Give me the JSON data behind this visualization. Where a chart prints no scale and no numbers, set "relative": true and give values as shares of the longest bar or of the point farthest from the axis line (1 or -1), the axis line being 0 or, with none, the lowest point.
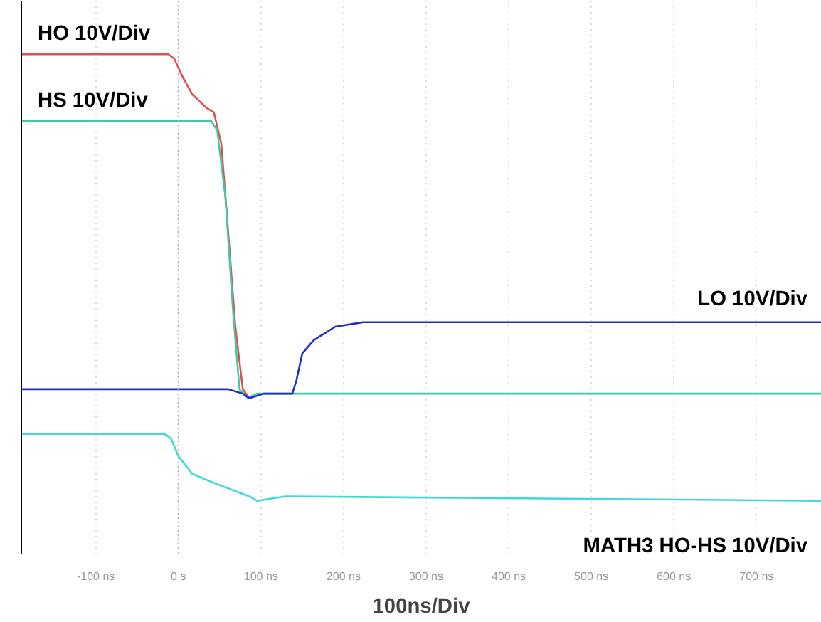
{
  "chart_data": {
    "type": "line",
    "relative": true,
    "xlabel": "100ns/Div",
    "xlim": [
      -191,
      779
    ],
    "xticks": [
      {
        "value": -100,
        "label": "-100 ns"
      },
      {
        "value": 0,
        "label": "0 s"
      },
      {
        "value": 100,
        "label": "100 ns"
      },
      {
        "value": 200,
        "label": "200 ns"
      },
      {
        "value": 300,
        "label": "300 ns"
      },
      {
        "value": 400,
        "label": "400 ns"
      },
      {
        "value": 500,
        "label": "500 ns"
      },
      {
        "value": 600,
        "label": "600 ns"
      },
      {
        "value": 700,
        "label": "700 ns"
      }
    ],
    "grid": "x",
    "ref_lines": [
      {
        "axis": "x",
        "value": 0,
        "color": "#b0b0b0",
        "line_style": "dotted"
      }
    ],
    "series": [
      {
        "name": "HO 10V/Div",
        "color": "#e05050",
        "x": [
          -191,
          -12,
          -5,
          5,
          17,
          34,
          43,
          52,
          60,
          69,
          78,
          86
        ],
        "values": [
          1.0,
          1.0,
          0.99,
          0.95,
          0.91,
          0.88,
          0.87,
          0.8,
          0.61,
          0.39,
          0.25,
          0.23
        ]
      },
      {
        "name": "HS 10V/Div",
        "color": "#40c8a8",
        "x": [
          -191,
          40,
          47,
          57,
          66,
          74,
          84,
          95,
          779
        ],
        "values": [
          0.85,
          0.85,
          0.83,
          0.68,
          0.43,
          0.25,
          0.23,
          0.24,
          0.24
        ]
      },
      {
        "name": "LO 10V/Div",
        "color": "#2030c0",
        "x": [
          -191,
          60,
          78,
          86,
          103,
          138,
          143,
          150,
          164,
          190,
          224,
          302,
          779
        ],
        "values": [
          0.25,
          0.25,
          0.24,
          0.23,
          0.24,
          0.24,
          0.27,
          0.33,
          0.36,
          0.39,
          0.4,
          0.4,
          0.4
        ]
      },
      {
        "name": "MATH3 HO-HS 10V/Div",
        "color": "#40d8d8",
        "x": [
          -191,
          -17,
          -9,
          0,
          17,
          43,
          86,
          95,
          129,
          779
        ],
        "values": [
          0.15,
          0.15,
          0.14,
          0.1,
          0.06,
          0.04,
          0.01,
          0.0,
          0.01,
          0.0
        ]
      }
    ]
  }
}
